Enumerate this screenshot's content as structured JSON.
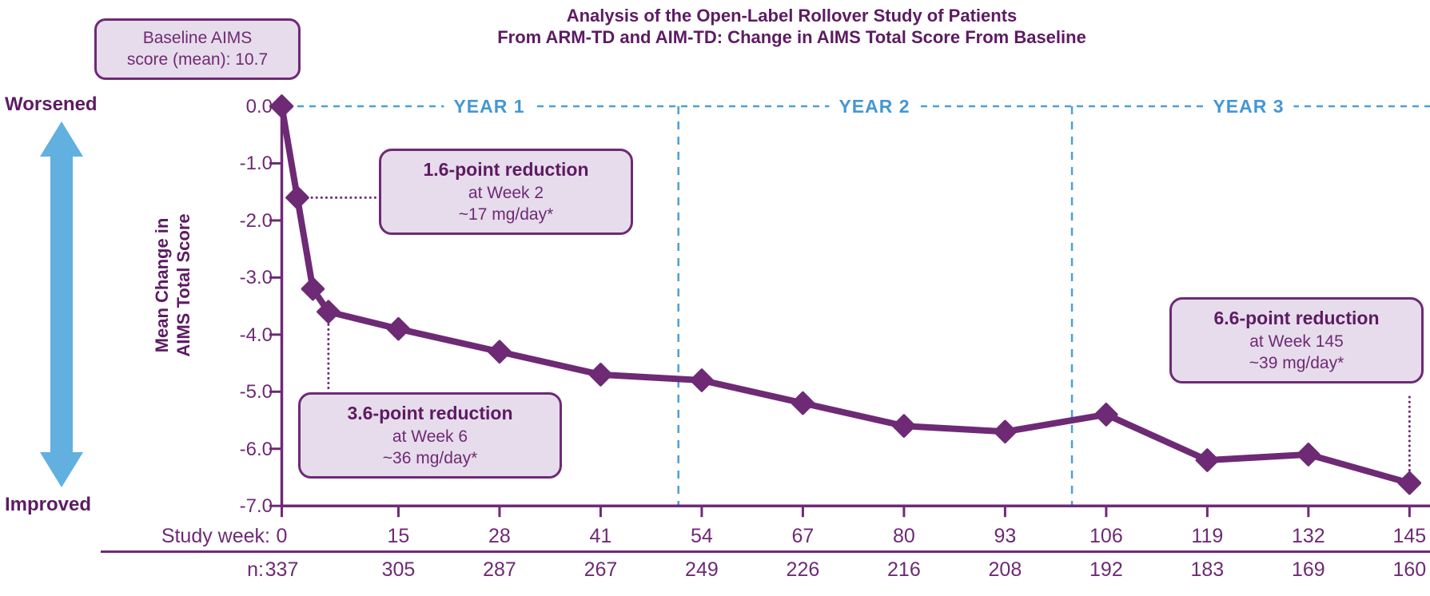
{
  "colors": {
    "purple_dark": "#5D1B63",
    "purple": "#6E2A75",
    "lavender_fill": "#E7DCEB",
    "blue_arrow": "#61B0E0",
    "blue_year_text": "#4497D3",
    "blue_dash": "#4E9FD6",
    "background": "#ffffff"
  },
  "title": {
    "line1": "Analysis of the Open-Label Rollover Study of Patients",
    "line2": "From ARM-TD and AIM-TD: Change in AIMS Total Score From Baseline"
  },
  "baseline_callout": {
    "line1": "Baseline AIMS",
    "line2": "score (mean): 10.7"
  },
  "direction_labels": {
    "top": "Worsened",
    "bottom": "Improved"
  },
  "y_axis": {
    "label_line1": "Mean Change in",
    "label_line2": "AIMS Total Score",
    "ticks": [
      "0.0",
      "-1.0",
      "-2.0",
      "-3.0",
      "-4.0",
      "-5.0",
      "-6.0",
      "-7.0"
    ]
  },
  "years": [
    {
      "label": "YEAR 1"
    },
    {
      "label": "YEAR 2"
    },
    {
      "label": "YEAR 3"
    }
  ],
  "callouts": [
    {
      "line1": "1.6-point reduction",
      "line2": "at Week 2",
      "line3": "~17 mg/day*"
    },
    {
      "line1": "3.6-point reduction",
      "line2": "at Week 6",
      "line3": "~36 mg/day*"
    },
    {
      "line1": "6.6-point reduction",
      "line2": "at Week 145",
      "line3": "~39 mg/day*"
    }
  ],
  "bottom": {
    "week_row_label": "Study week:",
    "n_row_label": "n:"
  },
  "chart_data": {
    "type": "line",
    "title": "Analysis of the Open-Label Rollover Study of Patients From ARM-TD and AIM-TD: Change in AIMS Total Score From Baseline",
    "xlabel": "Study week",
    "ylabel": "Mean Change in AIMS Total Score",
    "baseline_aims_mean": 10.7,
    "x_weeks": [
      0,
      2,
      4,
      6,
      15,
      28,
      41,
      54,
      67,
      80,
      93,
      106,
      119,
      132,
      145
    ],
    "y_mean_change": [
      0.0,
      -1.6,
      -3.2,
      -3.6,
      -3.9,
      -4.3,
      -4.7,
      -4.8,
      -5.2,
      -5.6,
      -5.7,
      -5.4,
      -6.2,
      -6.1,
      -6.6
    ],
    "ylim": [
      -7.0,
      0.0
    ],
    "ytick_values": [
      0.0,
      -1.0,
      -2.0,
      -3.0,
      -4.0,
      -5.0,
      -6.0,
      -7.0
    ],
    "xtick_weeks": [
      0,
      15,
      28,
      41,
      54,
      67,
      80,
      93,
      106,
      119,
      132,
      145
    ],
    "n_per_week": [
      337,
      305,
      287,
      267,
      249,
      226,
      216,
      208,
      192,
      183,
      169,
      160
    ],
    "year_dividers_at_weeks": [
      51,
      101.6
    ],
    "grid": false,
    "legend": "none",
    "annotations": [
      {
        "week": 2,
        "value": -1.6,
        "text": "1.6-point reduction at Week 2 ~17 mg/day*"
      },
      {
        "week": 6,
        "value": -3.6,
        "text": "3.6-point reduction at Week 6 ~36 mg/day*"
      },
      {
        "week": 145,
        "value": -6.6,
        "text": "6.6-point reduction at Week 145 ~39 mg/day*"
      }
    ]
  }
}
